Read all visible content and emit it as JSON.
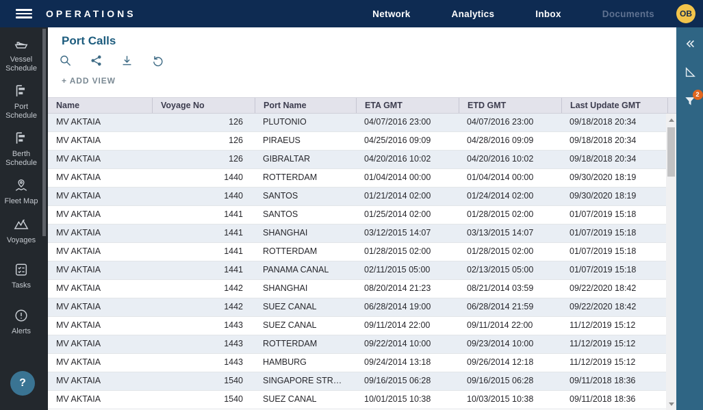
{
  "colors": {
    "topbar_bg": "#0e2b52",
    "sidebar_bg": "#23282d",
    "panel_bg": "#2f6584",
    "accent_teal": "#3a7493",
    "title_color": "#1d5c7e",
    "icon_color": "#3e6b85",
    "avatar_bg": "#f2c44b",
    "avatar_text": "#132a4e",
    "badge_bg": "#e0661f",
    "nav_disabled": "#5f7291",
    "header_bg": "#e3e3eb",
    "header_text": "#3c3c4e",
    "row_alt_bg": "#e9eef4",
    "cell_text": "#26262b",
    "addview_color": "#7b8a94"
  },
  "topbar": {
    "title": "OPERATIONS",
    "nav": [
      {
        "id": "network",
        "label": "Network",
        "disabled": false
      },
      {
        "id": "analytics",
        "label": "Analytics",
        "disabled": false
      },
      {
        "id": "inbox",
        "label": "Inbox",
        "disabled": false
      },
      {
        "id": "documents",
        "label": "Documents",
        "disabled": true
      }
    ],
    "avatar": "OB"
  },
  "sidebar": {
    "items": [
      {
        "id": "vessel-schedule",
        "icon": "ship-icon",
        "label": "Vessel Schedule"
      },
      {
        "id": "port-schedule",
        "icon": "schedule-chart-icon",
        "label": "Port Schedule"
      },
      {
        "id": "berth-schedule",
        "icon": "schedule-chart-icon",
        "label": "Berth Schedule"
      },
      {
        "id": "fleet-map",
        "icon": "map-pin-icon",
        "label": "Fleet Map"
      },
      {
        "id": "voyages",
        "icon": "mountains-icon",
        "label": "Voyages"
      },
      {
        "id": "tasks",
        "icon": "checklist-icon",
        "label": "Tasks"
      },
      {
        "id": "alerts",
        "icon": "alert-circle-icon",
        "label": "Alerts"
      }
    ],
    "help_label": "?"
  },
  "main": {
    "title": "Port Calls",
    "toolbar": [
      {
        "id": "search",
        "icon": "search-icon"
      },
      {
        "id": "share",
        "icon": "share-icon"
      },
      {
        "id": "download",
        "icon": "download-icon"
      },
      {
        "id": "reset",
        "icon": "undo-icon"
      }
    ],
    "add_view_label": "+ ADD VIEW",
    "table": {
      "columns": [
        "Name",
        "Voyage No",
        "Port Name",
        "ETA GMT",
        "ETD GMT",
        "Last Update GMT"
      ],
      "rows": [
        {
          "name": "MV AKTAIA",
          "voyage_no": "126",
          "port_name": "PLUTONIO",
          "eta": "04/07/2016 23:00",
          "etd": "04/07/2016 23:00",
          "last_update": "09/18/2018 20:34"
        },
        {
          "name": "MV AKTAIA",
          "voyage_no": "126",
          "port_name": "PIRAEUS",
          "eta": "04/25/2016 09:09",
          "etd": "04/28/2016 09:09",
          "last_update": "09/18/2018 20:34"
        },
        {
          "name": "MV AKTAIA",
          "voyage_no": "126",
          "port_name": "GIBRALTAR",
          "eta": "04/20/2016 10:02",
          "etd": "04/20/2016 10:02",
          "last_update": "09/18/2018 20:34"
        },
        {
          "name": "MV AKTAIA",
          "voyage_no": "1440",
          "port_name": "ROTTERDAM",
          "eta": "01/04/2014 00:00",
          "etd": "01/04/2014 00:00",
          "last_update": "09/30/2020 18:19"
        },
        {
          "name": "MV AKTAIA",
          "voyage_no": "1440",
          "port_name": "SANTOS",
          "eta": "01/21/2014 02:00",
          "etd": "01/24/2014 02:00",
          "last_update": "09/30/2020 18:19"
        },
        {
          "name": "MV AKTAIA",
          "voyage_no": "1441",
          "port_name": "SANTOS",
          "eta": "01/25/2014 02:00",
          "etd": "01/28/2015 02:00",
          "last_update": "01/07/2019 15:18"
        },
        {
          "name": "MV AKTAIA",
          "voyage_no": "1441",
          "port_name": "SHANGHAI",
          "eta": "03/12/2015 14:07",
          "etd": "03/13/2015 14:07",
          "last_update": "01/07/2019 15:18"
        },
        {
          "name": "MV AKTAIA",
          "voyage_no": "1441",
          "port_name": "ROTTERDAM",
          "eta": "01/28/2015 02:00",
          "etd": "01/28/2015 02:00",
          "last_update": "01/07/2019 15:18"
        },
        {
          "name": "MV AKTAIA",
          "voyage_no": "1441",
          "port_name": "PANAMA CANAL",
          "eta": "02/11/2015 05:00",
          "etd": "02/13/2015 05:00",
          "last_update": "01/07/2019 15:18"
        },
        {
          "name": "MV AKTAIA",
          "voyage_no": "1442",
          "port_name": "SHANGHAI",
          "eta": "08/20/2014 21:23",
          "etd": "08/21/2014 03:59",
          "last_update": "09/22/2020 18:42"
        },
        {
          "name": "MV AKTAIA",
          "voyage_no": "1442",
          "port_name": "SUEZ CANAL",
          "eta": "06/28/2014 19:00",
          "etd": "06/28/2014 21:59",
          "last_update": "09/22/2020 18:42"
        },
        {
          "name": "MV AKTAIA",
          "voyage_no": "1443",
          "port_name": "SUEZ CANAL",
          "eta": "09/11/2014 22:00",
          "etd": "09/11/2014 22:00",
          "last_update": "11/12/2019 15:12"
        },
        {
          "name": "MV AKTAIA",
          "voyage_no": "1443",
          "port_name": "ROTTERDAM",
          "eta": "09/22/2014 10:00",
          "etd": "09/23/2014 10:00",
          "last_update": "11/12/2019 15:12"
        },
        {
          "name": "MV AKTAIA",
          "voyage_no": "1443",
          "port_name": "HAMBURG",
          "eta": "09/24/2014 13:18",
          "etd": "09/26/2014 12:18",
          "last_update": "11/12/2019 15:12"
        },
        {
          "name": "MV AKTAIA",
          "voyage_no": "1540",
          "port_name": "SINGAPORE STR…",
          "eta": "09/16/2015 06:28",
          "etd": "09/16/2015 06:28",
          "last_update": "09/11/2018 18:36"
        },
        {
          "name": "MV AKTAIA",
          "voyage_no": "1540",
          "port_name": "SUEZ CANAL",
          "eta": "10/01/2015 10:38",
          "etd": "10/03/2015 10:38",
          "last_update": "09/11/2018 18:36"
        }
      ]
    }
  },
  "right_panel": {
    "collapse_icon": "chevron-double-left-icon",
    "pointer_icon": "pointer-icon",
    "filter_icon": "filter-icon",
    "filter_badge": "2"
  }
}
